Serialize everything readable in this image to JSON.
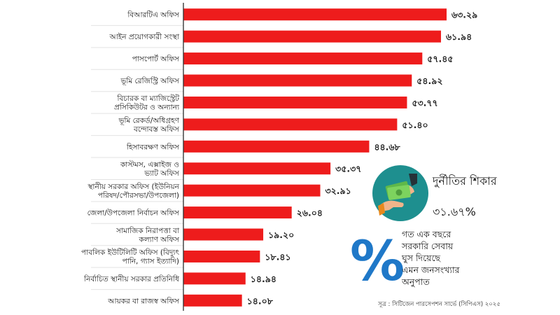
{
  "chart_data": {
    "type": "bar",
    "orientation": "horizontal",
    "categories": [
      [
        "বিআরটিএ অফিস"
      ],
      [
        "আইন প্রয়োগকারী সংস্থা"
      ],
      [
        "পাসপোর্ট অফিস"
      ],
      [
        "ভূমি রেজিস্ট্রি অফিস"
      ],
      [
        "বিচারক বা ম্যাজিস্ট্রেট",
        "প্রসিকিউটর ও অন্যান্য"
      ],
      [
        "ভূমি রেকর্ড/অধিগ্রহণ",
        "বন্দোবস্ত অফিস"
      ],
      [
        "হিসাবরক্ষণ অফিস"
      ],
      [
        "কাস্টমস, এক্সাইজ ও",
        "ভ্যাট অফিস"
      ],
      [
        "স্থানীয় সরকার অফিস (ইউনিয়ন",
        "পরিষদ/পৌরসভা/উপজেলা)"
      ],
      [
        "জেলা/উপজেলা নির্বাচন অফিস"
      ],
      [
        "সামাজিক নিরাপত্তা বা",
        "কল্যাণ অফিস"
      ],
      [
        "পাবলিক ইউটিলিটি অফিস (বিদ্যুৎ",
        "পানি, গ্যাস ইত্যাদি)"
      ],
      [
        "নির্বাচিত স্থানীয় সরকার প্রতিনিধি"
      ],
      [
        "আয়কর বা রাজস্ব অফিস"
      ]
    ],
    "values": [
      63.29,
      61.94,
      57.45,
      54.92,
      53.77,
      51.4,
      44.68,
      35.37,
      32.91,
      26.04,
      19.2,
      18.41,
      14.94,
      14.08
    ],
    "value_labels": [
      "৬৩.২৯",
      "৬১.৯৪",
      "৫৭.৪৫",
      "৫৪.৯২",
      "৫৩.৭৭",
      "৫১.৪০",
      "৪৪.৬৮",
      "৩৫.৩৭",
      "৩২.৯১",
      "২৬.০৪",
      "১৯.২০",
      "১৮.৪১",
      "১৪.৯৪",
      "১৪.০৮"
    ],
    "xlim": [
      0,
      70
    ],
    "bar_color": "#ee1c1c",
    "grid": false,
    "legend": "none"
  },
  "callout": {
    "victim_title": "দুর্নীতির শিকার",
    "victim_pct": "৩১.৬৭%",
    "icon": "bribe-money-hands-icon",
    "percent_symbol": "%",
    "description_lines": [
      "গত এক বছরে",
      "সরকারি সেবায়",
      "ঘুস দিয়েছে",
      "এমন জনসংখ্যার",
      "অনুপাত"
    ]
  },
  "source": "সূত্র : সিটিজেন পারসেপশন সার্ভে (সিপিএস) ২০২৫",
  "colors": {
    "bar": "#ee1c1c",
    "badge": "#1e8f8f",
    "percent": "#1f78c8",
    "money": "#7dd35e"
  }
}
